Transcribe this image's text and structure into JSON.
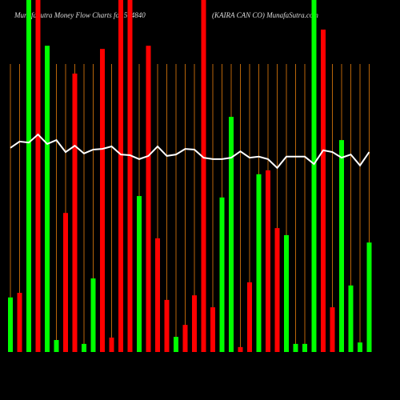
{
  "chart_data": {
    "type": "bar",
    "title": "MunafaSutra  Money Flow  Charts for 504840",
    "subtitle": "(KAIRA CAN  CO) MunafaSutra.com",
    "series": [
      {
        "name": "Money Flow",
        "type": "bar",
        "values": [
          15.5,
          16.8,
          100,
          100,
          87.0,
          3.4,
          39.5,
          79.1,
          2.3,
          20.9,
          86.1,
          4.1,
          100,
          100,
          44.3,
          87.0,
          32.3,
          14.8,
          4.3,
          7.7,
          16.1,
          100,
          12.7,
          43.9,
          66.8,
          1.4,
          19.8,
          50.5,
          51.6,
          35.2,
          33.2,
          2.3,
          2.3,
          100,
          91.6,
          12.7,
          60.2,
          18.9,
          2.7,
          31.1
        ],
        "colors": [
          "#00ff00",
          "#ff0000",
          "#00ff00",
          "#ff0000",
          "#00ff00",
          "#00ff00",
          "#ff0000",
          "#ff0000",
          "#00ff00",
          "#00ff00",
          "#ff0000",
          "#ff0000",
          "#ff0000",
          "#ff0000",
          "#00ff00",
          "#ff0000",
          "#ff0000",
          "#ff0000",
          "#00ff00",
          "#ff0000",
          "#ff0000",
          "#ff0000",
          "#ff0000",
          "#00ff00",
          "#00ff00",
          "#ff0000",
          "#ff0000",
          "#00ff00",
          "#ff0000",
          "#ff0000",
          "#00ff00",
          "#00ff00",
          "#00ff00",
          "#00ff00",
          "#ff0000",
          "#ff0000",
          "#00ff00",
          "#00ff00",
          "#00ff00",
          "#00ff00"
        ]
      },
      {
        "name": "Price",
        "type": "line",
        "color": "#ffffff",
        "values": [
          58.0,
          59.8,
          59.5,
          61.8,
          59.1,
          60.2,
          56.8,
          58.6,
          56.4,
          57.5,
          57.7,
          58.4,
          56.1,
          55.9,
          54.8,
          55.7,
          58.4,
          55.7,
          56.1,
          57.7,
          57.5,
          55.2,
          54.8,
          54.8,
          55.2,
          57.0,
          55.2,
          55.5,
          54.8,
          52.3,
          55.5,
          55.5,
          55.5,
          53.4,
          57.3,
          56.8,
          55.2,
          56.1,
          53.0,
          56.8
        ]
      }
    ],
    "ylim": [
      0,
      100
    ],
    "grid": true,
    "grid_color": "#b8650a"
  }
}
